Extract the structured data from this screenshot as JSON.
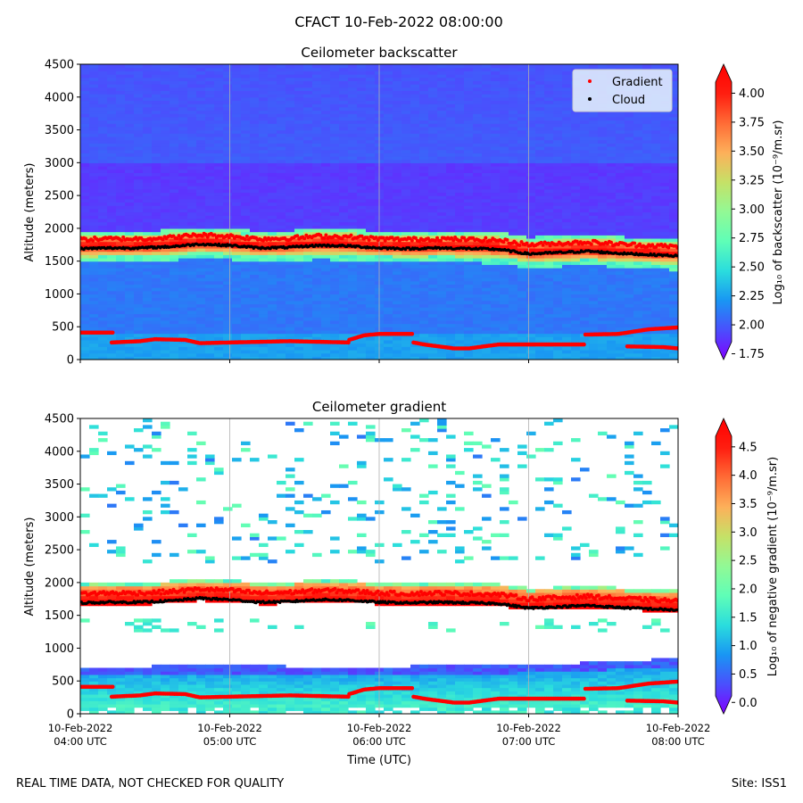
{
  "suptitle": "CFACT 10-Feb-2022 08:00:00",
  "footer_left": "REAL TIME DATA, NOT CHECKED FOR QUALITY",
  "footer_right": "Site: ISS1",
  "colors": {
    "rainbow": [
      "#8000ff",
      "#4a4ffd",
      "#1996f3",
      "#2adddd",
      "#5ffeb7",
      "#92f995",
      "#c5e167",
      "#fdb05a",
      "#ff6c36",
      "#ff1e10",
      "#ff0000"
    ],
    "gradient_marker": "#ff0000",
    "cloud_marker": "#000000",
    "grid": "#b0b0b0"
  },
  "chart_data": [
    {
      "type": "heatmap",
      "title": "Ceilometer backscatter",
      "xlabel": "",
      "ylabel": "Altitude (meters)",
      "xlim_hours_utc": [
        4,
        8
      ],
      "ylim": [
        0,
        4500
      ],
      "yticks": [
        "0",
        "500",
        "1000",
        "1500",
        "2000",
        "2500",
        "3000",
        "3500",
        "4000",
        "4500"
      ],
      "xtick_labels": [],
      "grid": "vertical lines at each hour",
      "legend": {
        "placement": "top-right",
        "entries": [
          "Gradient",
          "Cloud"
        ]
      },
      "colorbar": {
        "label": "Log₁₀ of backscatter (10⁻⁹/m.sr)",
        "range": [
          1.7,
          4.25
        ],
        "ticks": [
          "1.75",
          "2.00",
          "2.25",
          "2.50",
          "2.75",
          "3.00",
          "3.25",
          "3.50",
          "3.75",
          "4.00"
        ]
      },
      "background_level": 2.1,
      "upper_level": 1.85,
      "layer": {
        "top_m": 1900,
        "bottom_m": 1550,
        "peak": 4.25
      }
    },
    {
      "type": "heatmap",
      "title": "Ceilometer gradient",
      "xlabel": "Time (UTC)",
      "ylabel": "Altitude (meters)",
      "xlim_hours_utc": [
        4,
        8
      ],
      "ylim": [
        0,
        4500
      ],
      "yticks": [
        "0",
        "500",
        "1000",
        "1500",
        "2000",
        "2500",
        "3000",
        "3500",
        "4000",
        "4500"
      ],
      "xtick_labels": [
        [
          "10-Feb-2022",
          "04:00 UTC"
        ],
        [
          "10-Feb-2022",
          "05:00 UTC"
        ],
        [
          "10-Feb-2022",
          "06:00 UTC"
        ],
        [
          "10-Feb-2022",
          "07:00 UTC"
        ],
        [
          "10-Feb-2022",
          "08:00 UTC"
        ]
      ],
      "grid": "vertical lines at each hour",
      "colorbar": {
        "label": "Log₁₀ of negative gradient (10⁻⁹/m.sr)",
        "range": [
          -0.2,
          5.0
        ],
        "ticks": [
          "0.0",
          "0.5",
          "1.0",
          "1.5",
          "2.0",
          "2.5",
          "3.0",
          "3.5",
          "4.0",
          "4.5"
        ]
      },
      "boundary_layer_top_m": [
        720,
        720,
        740,
        730,
        720,
        720,
        730,
        740,
        760,
        800,
        840
      ],
      "layer": {
        "top_m": 2050,
        "bottom_m": 1650,
        "peak": 5.0
      }
    }
  ],
  "series": {
    "cloud_altitude_m": {
      "hours": [
        4.0,
        4.2,
        4.4,
        4.6,
        4.8,
        5.0,
        5.2,
        5.4,
        5.6,
        5.8,
        6.0,
        6.2,
        6.4,
        6.6,
        6.8,
        7.0,
        7.2,
        7.4,
        7.6,
        7.8,
        8.0
      ],
      "values": [
        1690,
        1700,
        1700,
        1720,
        1760,
        1740,
        1700,
        1710,
        1740,
        1730,
        1700,
        1690,
        1700,
        1690,
        1680,
        1610,
        1630,
        1650,
        1620,
        1600,
        1580
      ]
    },
    "lower_gradient_segments_m": [
      {
        "hours": [
          4.0,
          4.22
        ],
        "values": [
          410,
          410
        ]
      },
      {
        "hours": [
          4.21,
          4.4,
          4.5,
          4.7,
          4.8,
          5.0,
          5.2,
          5.4,
          5.6,
          5.8
        ],
        "values": [
          260,
          280,
          310,
          300,
          250,
          260,
          270,
          280,
          270,
          260
        ]
      },
      {
        "hours": [
          5.8,
          5.9,
          6.0,
          6.23
        ],
        "values": [
          300,
          370,
          390,
          390
        ]
      },
      {
        "hours": [
          6.23,
          6.3,
          6.5,
          6.6,
          6.8,
          7.0,
          7.2,
          7.38
        ],
        "values": [
          260,
          230,
          170,
          170,
          230,
          230,
          230,
          230
        ]
      },
      {
        "hours": [
          7.38,
          7.6,
          7.8,
          8.0
        ],
        "values": [
          380,
          390,
          460,
          490
        ]
      },
      {
        "hours": [
          7.66,
          7.9,
          8.0
        ],
        "values": [
          200,
          190,
          170
        ]
      }
    ]
  }
}
